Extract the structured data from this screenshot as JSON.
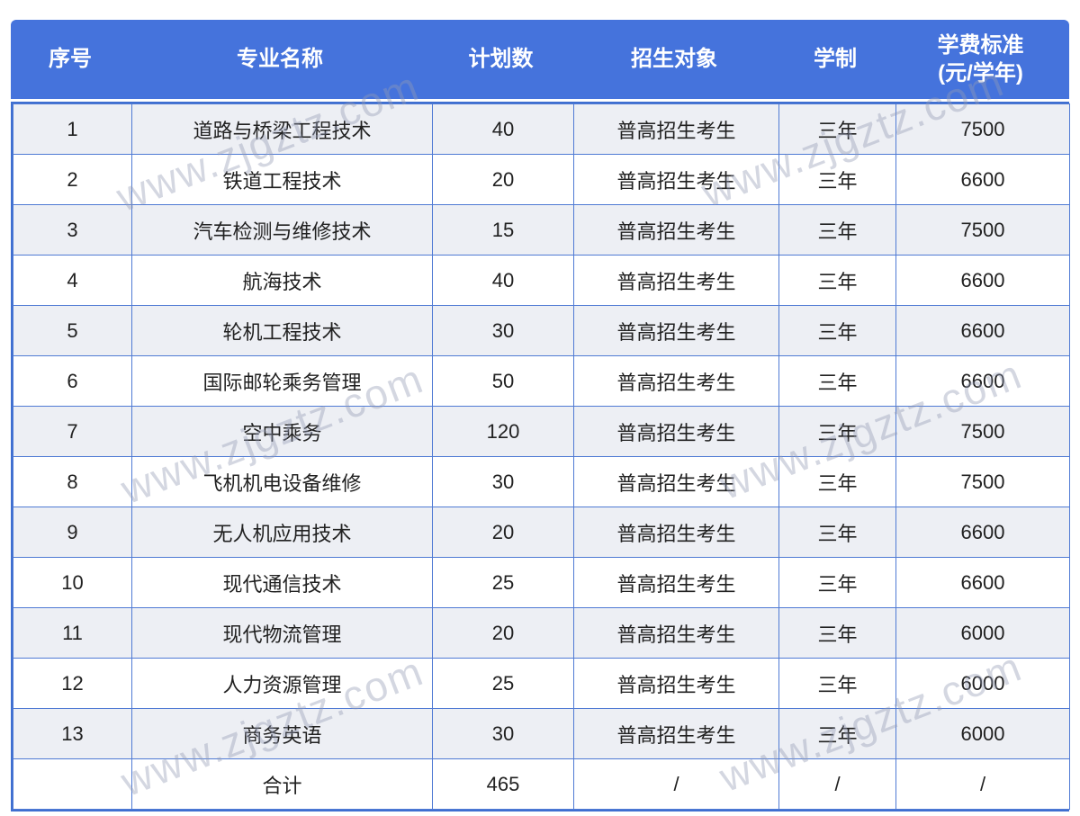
{
  "table": {
    "columns": [
      {
        "key": "index",
        "label": "序号"
      },
      {
        "key": "major",
        "label": "专业名称"
      },
      {
        "key": "plan",
        "label": "计划数"
      },
      {
        "key": "target",
        "label": "招生对象"
      },
      {
        "key": "duration",
        "label": "学制"
      },
      {
        "key": "tuition",
        "label": "学费标准\n(元/学年)"
      }
    ],
    "rows": [
      [
        "1",
        "道路与桥梁工程技术",
        "40",
        "普高招生考生",
        "三年",
        "7500"
      ],
      [
        "2",
        "铁道工程技术",
        "20",
        "普高招生考生",
        "三年",
        "6600"
      ],
      [
        "3",
        "汽车检测与维修技术",
        "15",
        "普高招生考生",
        "三年",
        "7500"
      ],
      [
        "4",
        "航海技术",
        "40",
        "普高招生考生",
        "三年",
        "6600"
      ],
      [
        "5",
        "轮机工程技术",
        "30",
        "普高招生考生",
        "三年",
        "6600"
      ],
      [
        "6",
        "国际邮轮乘务管理",
        "50",
        "普高招生考生",
        "三年",
        "6600"
      ],
      [
        "7",
        "空中乘务",
        "120",
        "普高招生考生",
        "三年",
        "7500"
      ],
      [
        "8",
        "飞机机电设备维修",
        "30",
        "普高招生考生",
        "三年",
        "7500"
      ],
      [
        "9",
        "无人机应用技术",
        "20",
        "普高招生考生",
        "三年",
        "6600"
      ],
      [
        "10",
        "现代通信技术",
        "25",
        "普高招生考生",
        "三年",
        "6600"
      ],
      [
        "11",
        "现代物流管理",
        "20",
        "普高招生考生",
        "三年",
        "6000"
      ],
      [
        "12",
        "人力资源管理",
        "25",
        "普高招生考生",
        "三年",
        "6000"
      ],
      [
        "13",
        "商务英语",
        "30",
        "普高招生考生",
        "三年",
        "6000"
      ]
    ],
    "total_row": [
      "",
      "合计",
      "465",
      "/",
      "/",
      "/"
    ]
  },
  "watermark": {
    "text": "www.zjgztz.com"
  },
  "colors": {
    "header_bg": "#4573DC",
    "header_text": "#FFFFFF",
    "grid_border": "#4F7AD4",
    "stripe_row_bg": "#EDEFF4",
    "plain_row_bg": "#FFFFFF",
    "body_text": "#212121",
    "watermark_gray": "#949CB4"
  }
}
